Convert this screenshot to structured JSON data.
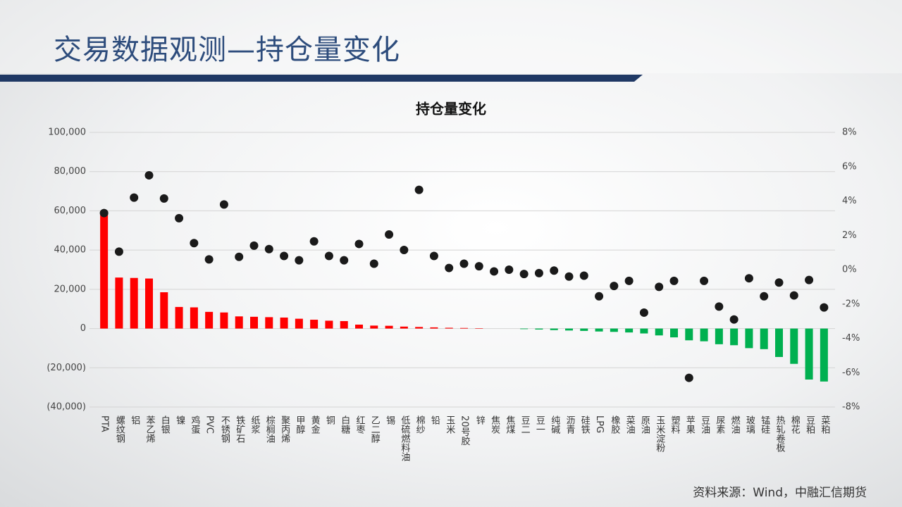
{
  "header": {
    "title": "交易数据观测—持仓量变化"
  },
  "footer": {
    "source": "资料来源：Wind，中融汇信期货"
  },
  "chart_data": {
    "type": "bar",
    "title": "持仓量变化",
    "categories": [
      "PTA",
      "螺纹钢",
      "铝",
      "苯乙烯",
      "白银",
      "镍",
      "鸡蛋",
      "PVC",
      "不锈钢",
      "铁矿石",
      "纸浆",
      "棕榈油",
      "聚丙烯",
      "甲醇",
      "黄金",
      "铜",
      "白糖",
      "红枣",
      "乙二醇",
      "锡",
      "低硫燃料油",
      "棉纱",
      "铅",
      "玉米",
      "20号胶",
      "锌",
      "焦炭",
      "焦煤",
      "豆二",
      "豆一",
      "纯碱",
      "沥青",
      "硅铁",
      "LPG",
      "橡胶",
      "菜油",
      "原油",
      "玉米淀粉",
      "塑料",
      "苹果",
      "豆油",
      "尿素",
      "燃油",
      "玻璃",
      "锰硅",
      "热轧卷板",
      "棉花",
      "豆粕",
      "菜粕"
    ],
    "series": [
      {
        "type": "bar",
        "positive_color": "#ff0000",
        "negative_color": "#00b050",
        "values": [
          60000,
          26000,
          25800,
          25500,
          18500,
          11000,
          10800,
          8500,
          8200,
          6200,
          6000,
          5800,
          5600,
          5000,
          4500,
          4000,
          3800,
          2000,
          1500,
          1400,
          1000,
          800,
          600,
          400,
          300,
          200,
          0,
          0,
          -300,
          -500,
          -800,
          -1000,
          -1200,
          -1500,
          -1700,
          -2000,
          -2500,
          -3500,
          -4500,
          -6000,
          -6500,
          -8000,
          -8500,
          -10000,
          -10500,
          -14500,
          -18000,
          -26000,
          -27000
        ]
      },
      {
        "type": "scatter",
        "axis": "y2",
        "color": "#1a1a1a",
        "values": [
          3.3,
          1.05,
          4.2,
          5.5,
          4.15,
          3.0,
          1.55,
          0.6,
          3.8,
          0.75,
          1.4,
          1.2,
          0.8,
          0.55,
          1.65,
          0.8,
          0.55,
          1.5,
          0.35,
          2.05,
          1.15,
          4.65,
          0.8,
          0.1,
          0.35,
          0.2,
          -0.1,
          0,
          -0.25,
          -0.2,
          -0.05,
          -0.4,
          -0.35,
          -1.55,
          -0.95,
          -0.65,
          -2.5,
          -1.0,
          -0.65,
          -6.3,
          -0.65,
          -2.15,
          -2.9,
          -0.5,
          -1.55,
          -0.75,
          -1.5,
          -0.6,
          -2.2
        ]
      }
    ],
    "ylim": [
      -40000,
      100000
    ],
    "yticks": [
      {
        "value": 100000,
        "label": "100,000"
      },
      {
        "value": 80000,
        "label": "80,000"
      },
      {
        "value": 60000,
        "label": "60,000"
      },
      {
        "value": 40000,
        "label": "40,000"
      },
      {
        "value": 20000,
        "label": "20,000"
      },
      0,
      {
        "value": -20000,
        "label": "(20,000)"
      },
      {
        "value": -40000,
        "label": "(40,000)"
      }
    ],
    "y2lim": [
      -8,
      8
    ],
    "y2ticks": [
      {
        "value": 8,
        "label": "8%"
      },
      {
        "value": 6,
        "label": "6%"
      },
      {
        "value": 4,
        "label": "4%"
      },
      {
        "value": 2,
        "label": "2%"
      },
      {
        "value": 0,
        "label": "0%"
      },
      {
        "value": -2,
        "label": "-2%"
      },
      {
        "value": -4,
        "label": "-4%"
      },
      {
        "value": -6,
        "label": "-6%"
      },
      {
        "value": -8,
        "label": "-8%"
      }
    ],
    "grid": true
  }
}
